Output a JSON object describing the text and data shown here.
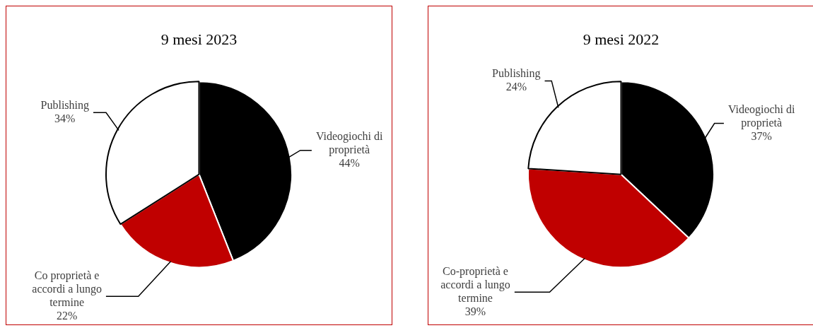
{
  "chart_data": [
    {
      "type": "pie",
      "title": "9 mesi 2023",
      "categories": [
        "Videogiochi di proprietà",
        "Co proprietà e accordi a lungo termine",
        "Publishing"
      ],
      "values": [
        44,
        22,
        34
      ],
      "value_labels": [
        "44%",
        "22%",
        "34%"
      ],
      "colors": [
        "#000000",
        "#c00000",
        "#ffffff"
      ],
      "legend": false
    },
    {
      "type": "pie",
      "title": "9 mesi 2022",
      "categories": [
        "Videogiochi di proprietà",
        "Co-proprietà e accordi a lungo termine",
        "Publishing"
      ],
      "values": [
        37,
        39,
        24
      ],
      "value_labels": [
        "37%",
        "39%",
        "24%"
      ],
      "colors": [
        "#000000",
        "#c00000",
        "#ffffff"
      ],
      "legend": false
    }
  ]
}
